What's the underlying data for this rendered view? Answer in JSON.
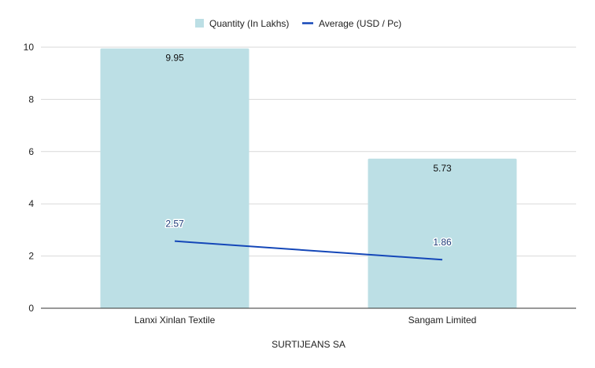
{
  "chart_data": {
    "type": "bar",
    "categories": [
      "Lanxi Xinlan Textile",
      "Sangam Limited"
    ],
    "series": [
      {
        "name": "Quantity (In Lakhs)",
        "type": "bar",
        "values": [
          9.95,
          5.73
        ],
        "color": "#bcdfe5"
      },
      {
        "name": "Average (USD / Pc)",
        "type": "line",
        "values": [
          2.57,
          1.86
        ],
        "color": "#1447b8"
      }
    ],
    "xlabel": "SURTIJEANS SA",
    "ylabel": "",
    "ylim": [
      0,
      10
    ],
    "yticks": [
      0,
      2,
      4,
      6,
      8,
      10
    ],
    "grid": true,
    "legend_position": "top-center",
    "data_labels": true
  }
}
